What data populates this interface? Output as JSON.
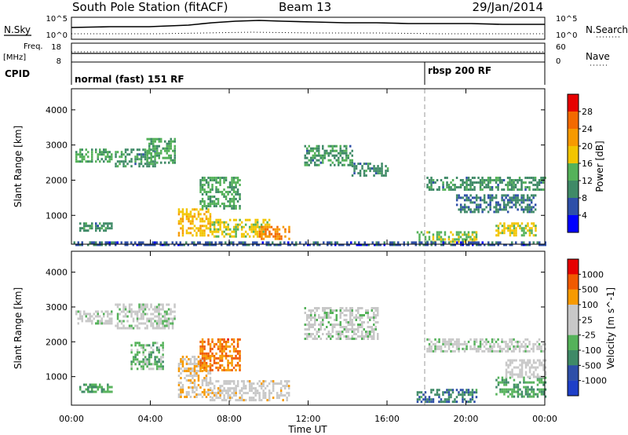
{
  "header": {
    "station": "South Pole Station (fitACF)",
    "beam": "Beam 13",
    "date": "29/Jan/2014"
  },
  "top_panels": {
    "nsky_label": "N.Sky",
    "nsearch_label": "N.Search",
    "count_ticks": [
      "10^5",
      "10^0"
    ],
    "freq_label": "Freq.",
    "freq_unit": "[MHz]",
    "freq_ticks": [
      "18",
      "8"
    ],
    "nave_label": "Nave",
    "nave_ticks": [
      "60",
      "0"
    ],
    "cpid_label": "CPID",
    "cpid_modes": [
      {
        "label": "normal (fast) 151 RF",
        "start_hour": 0
      },
      {
        "label": "rbsp 200 RF",
        "start_hour": 18
      }
    ]
  },
  "colors": {
    "power": [
      "#0000ff",
      "#2e4fa8",
      "#3f8a67",
      "#55b25a",
      "#f2c500",
      "#f79a00",
      "#f36a00",
      "#e60000"
    ],
    "velocity": [
      "#e60000",
      "#f05a00",
      "#f79a00",
      "#c8c8c8",
      "#c8c8c8",
      "#55b25a",
      "#3f8a67",
      "#2e4fa8",
      "#1e3fc8"
    ]
  },
  "chart_data": [
    {
      "type": "heatmap",
      "name": "power",
      "xlabel": "Time UT",
      "ylabel": "Slant Range [km]",
      "x_ticks": [
        "00:00",
        "04:00",
        "08:00",
        "12:00",
        "16:00",
        "20:00",
        "00:00"
      ],
      "xlim_hours": [
        0,
        24
      ],
      "ylim": [
        180,
        4600
      ],
      "y_ticks": [
        1000,
        2000,
        3000,
        4000
      ],
      "colorbar": {
        "label": "Power [dB]",
        "tick_labels": [
          "4",
          "8",
          "12",
          "16",
          "20",
          "24",
          "28"
        ],
        "range": [
          0,
          30
        ]
      },
      "regions": [
        {
          "t0": 0.0,
          "t1": 2.0,
          "r0": 200,
          "r1": 260,
          "v": 8
        },
        {
          "t0": 0.2,
          "t1": 2.0,
          "r0": 2500,
          "r1": 2900,
          "v": 12
        },
        {
          "t0": 2.2,
          "t1": 4.2,
          "r0": 2400,
          "r1": 2900,
          "v": 10
        },
        {
          "t0": 3.8,
          "t1": 5.2,
          "r0": 2500,
          "r1": 3200,
          "v": 12
        },
        {
          "t0": 0.4,
          "t1": 2.0,
          "r0": 550,
          "r1": 800,
          "v": 10
        },
        {
          "t0": 5.4,
          "t1": 7.0,
          "r0": 400,
          "r1": 1200,
          "v": 18
        },
        {
          "t0": 6.5,
          "t1": 8.5,
          "r0": 1200,
          "r1": 2100,
          "v": 12
        },
        {
          "t0": 7.0,
          "t1": 10.0,
          "r0": 400,
          "r1": 900,
          "v": 16
        },
        {
          "t0": 9.5,
          "t1": 11.0,
          "r0": 300,
          "r1": 700,
          "v": 22
        },
        {
          "t0": 11.8,
          "t1": 14.2,
          "r0": 2400,
          "r1": 3000,
          "v": 10
        },
        {
          "t0": 14.2,
          "t1": 16.0,
          "r0": 2100,
          "r1": 2500,
          "v": 9
        },
        {
          "t0": 18.0,
          "t1": 24.0,
          "r0": 1700,
          "r1": 2100,
          "v": 10
        },
        {
          "t0": 19.5,
          "t1": 23.5,
          "r0": 1100,
          "r1": 1600,
          "v": 8
        },
        {
          "t0": 21.5,
          "t1": 23.5,
          "r0": 400,
          "r1": 800,
          "v": 16
        },
        {
          "t0": 17.5,
          "t1": 20.5,
          "r0": 250,
          "r1": 550,
          "v": 14
        },
        {
          "t0": 0.0,
          "t1": 24.0,
          "r0": 180,
          "r1": 260,
          "v": 6
        }
      ]
    },
    {
      "type": "heatmap",
      "name": "velocity",
      "xlabel": "Time UT",
      "ylabel": "Slant Range [km]",
      "x_ticks": [
        "00:00",
        "04:00",
        "08:00",
        "12:00",
        "16:00",
        "20:00",
        "00:00"
      ],
      "xlim_hours": [
        0,
        24
      ],
      "ylim": [
        180,
        4600
      ],
      "y_ticks": [
        1000,
        2000,
        3000,
        4000
      ],
      "colorbar": {
        "label": "Velocity [m s^-1]",
        "tick_labels": [
          "1000",
          "500",
          "100",
          "25",
          "-25",
          "-100",
          "-500",
          "-1000"
        ],
        "range": [
          -1000,
          1000
        ]
      },
      "regions": [
        {
          "t0": 0.2,
          "t1": 2.0,
          "r0": 2500,
          "r1": 2900,
          "v": 0
        },
        {
          "t0": 2.2,
          "t1": 5.2,
          "r0": 2400,
          "r1": 3100,
          "v": 0
        },
        {
          "t0": 0.4,
          "t1": 2.0,
          "r0": 550,
          "r1": 800,
          "v": -300
        },
        {
          "t0": 3.0,
          "t1": 4.6,
          "r0": 1200,
          "r1": 2000,
          "v": -200
        },
        {
          "t0": 5.4,
          "t1": 7.0,
          "r0": 400,
          "r1": 1600,
          "v": 300
        },
        {
          "t0": 6.5,
          "t1": 8.5,
          "r0": 1200,
          "r1": 2100,
          "v": 600
        },
        {
          "t0": 7.0,
          "t1": 11.0,
          "r0": 300,
          "r1": 900,
          "v": 200
        },
        {
          "t0": 11.8,
          "t1": 15.5,
          "r0": 2100,
          "r1": 3000,
          "v": 0
        },
        {
          "t0": 18.0,
          "t1": 24.0,
          "r0": 1700,
          "r1": 2100,
          "v": 0
        },
        {
          "t0": 17.5,
          "t1": 20.5,
          "r0": 300,
          "r1": 650,
          "v": -500
        },
        {
          "t0": 21.5,
          "t1": 24.0,
          "r0": 400,
          "r1": 1000,
          "v": -300
        },
        {
          "t0": 22.0,
          "t1": 24.0,
          "r0": 1000,
          "r1": 1500,
          "v": 80
        }
      ]
    }
  ]
}
